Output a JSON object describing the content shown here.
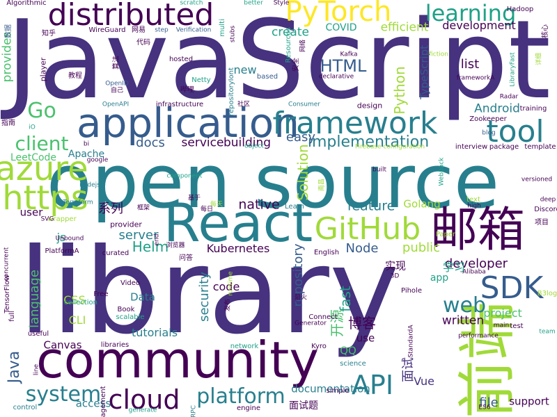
{
  "colors": {
    "background": "#ffffff",
    "palette": [
      "#440154",
      "#46327e",
      "#365c8d",
      "#277f8e",
      "#1fa187",
      "#4ac16d",
      "#a0da39",
      "#fde725"
    ]
  },
  "words": [
    {
      "text": "JavaScript",
      "color": "#46327e"
    },
    {
      "text": "library",
      "color": "#46327e"
    },
    {
      "text": "open source",
      "color": "#277f8e"
    },
    {
      "text": "community",
      "color": "#440154"
    },
    {
      "text": "React",
      "color": "#277f8e"
    },
    {
      "text": "前端",
      "color": "#a0da39"
    },
    {
      "text": "邮箱",
      "color": "#440154"
    },
    {
      "text": "application",
      "color": "#365c8d"
    },
    {
      "text": "distributed",
      "color": "#440154"
    },
    {
      "text": "framework",
      "color": "#277f8e"
    },
    {
      "text": "PyTorch",
      "color": "#fde725"
    },
    {
      "text": "GitHub",
      "color": "#a0da39"
    },
    {
      "text": "azure",
      "color": "#a0da39"
    },
    {
      "text": "https",
      "color": "#a0da39"
    },
    {
      "text": "tool",
      "color": "#277f8e"
    },
    {
      "text": "cloud",
      "color": "#440154"
    },
    {
      "text": "SDK",
      "color": "#365c8d"
    },
    {
      "text": "platform",
      "color": "#277f8e"
    },
    {
      "text": "API",
      "color": "#277f8e"
    },
    {
      "text": "learning",
      "color": "#1fa187"
    },
    {
      "text": "Go",
      "color": "#4ac16d"
    },
    {
      "text": "web",
      "color": "#277f8e"
    },
    {
      "text": "system",
      "color": "#277f8e"
    },
    {
      "text": "Java",
      "color": "#365c8d"
    },
    {
      "text": "client",
      "color": "#4ac16d"
    },
    {
      "text": "implementation",
      "color": "#277f8e"
    },
    {
      "text": "development",
      "color": "#440154"
    },
    {
      "text": "create",
      "color": "#1fa187"
    },
    {
      "text": "efficient",
      "color": "#a0da39"
    },
    {
      "text": "COVID",
      "color": "#1fa187"
    },
    {
      "text": "HTML",
      "color": "#365c8d"
    },
    {
      "text": "Python",
      "color": "#a0da39"
    },
    {
      "text": "new",
      "color": "#277f8e"
    },
    {
      "text": "list",
      "color": "#440154"
    },
    {
      "text": "Android",
      "color": "#277f8e"
    },
    {
      "text": "docs",
      "color": "#365c8d"
    },
    {
      "text": "service",
      "color": "#440154"
    },
    {
      "text": "building",
      "color": "#440154"
    },
    {
      "text": "easy",
      "color": "#365c8d"
    },
    {
      "text": "Solution",
      "color": "#a0da39"
    },
    {
      "text": "native",
      "color": "#440154"
    },
    {
      "text": "feature",
      "color": "#277f8e"
    },
    {
      "text": "Golang",
      "color": "#a0da39"
    },
    {
      "text": "系列",
      "color": "#440154"
    },
    {
      "text": "Kubernetes",
      "color": "#440154"
    },
    {
      "text": "Helm",
      "color": "#1fa187"
    },
    {
      "text": "server",
      "color": "#277f8e"
    },
    {
      "text": "Node",
      "color": "#365c8d"
    },
    {
      "text": "public",
      "color": "#a0da39"
    },
    {
      "text": "developer",
      "color": "#440154"
    },
    {
      "text": "学习",
      "color": "#1fa187"
    },
    {
      "text": "实现",
      "color": "#440154"
    },
    {
      "text": "repository",
      "color": "#365c8d"
    },
    {
      "text": "fast",
      "color": "#1fa187"
    },
    {
      "text": "code",
      "color": "#440154"
    },
    {
      "text": "security",
      "color": "#277f8e"
    },
    {
      "text": "博客",
      "color": "#440154"
    },
    {
      "text": "开源",
      "color": "#4ac16d"
    },
    {
      "text": "project",
      "color": "#4ac16d"
    },
    {
      "text": "written",
      "color": "#440154"
    },
    {
      "text": "language",
      "color": "#4ac16d"
    },
    {
      "text": "CSS",
      "color": "#a0da39"
    },
    {
      "text": "CLI",
      "color": "#a0da39"
    },
    {
      "text": "Data",
      "color": "#277f8e"
    },
    {
      "text": "tutorials",
      "color": "#277f8e"
    },
    {
      "text": "Canvas",
      "color": "#440154"
    },
    {
      "text": "use",
      "color": "#440154"
    },
    {
      "text": "QQ",
      "color": "#4ac16d"
    },
    {
      "text": "面试",
      "color": "#46327e"
    },
    {
      "text": "Vue",
      "color": "#46327e"
    },
    {
      "text": "file",
      "color": "#365c8d"
    },
    {
      "text": "support",
      "color": "#440154"
    },
    {
      "text": "documentation",
      "color": "#277f8e"
    },
    {
      "text": "面试题",
      "color": "#440154"
    },
    {
      "text": "access",
      "color": "#277f8e"
    },
    {
      "text": "js",
      "color": "#1fa187"
    },
    {
      "text": "user",
      "color": "#440154"
    },
    {
      "text": "provider",
      "color": "#440154"
    },
    {
      "text": "app",
      "color": "#1fa187"
    },
    {
      "text": "LeetCode",
      "color": "#4ac16d"
    },
    {
      "text": "Apache",
      "color": "#277f8e"
    },
    {
      "text": "provides",
      "color": "#4ac16d"
    },
    {
      "text": "based",
      "color": "#365c8d"
    },
    {
      "text": "design",
      "color": "#440154"
    },
    {
      "text": "TypeScript",
      "color": "#365c8d"
    },
    {
      "text": "Hadoop",
      "color": "#440154"
    },
    {
      "text": "Algorithmic",
      "color": "#440154"
    },
    {
      "text": "数据",
      "color": "#365c8d"
    },
    {
      "text": "知乎",
      "color": "#440154"
    },
    {
      "text": "WireGuard",
      "color": "#440154"
    },
    {
      "text": "网易",
      "color": "#440154"
    },
    {
      "text": "step",
      "color": "#365c8d"
    },
    {
      "text": "Verification",
      "color": "#365c8d"
    },
    {
      "text": "better",
      "color": "#1fa187"
    },
    {
      "text": "Style",
      "color": "#440154"
    },
    {
      "text": "scratch",
      "color": "#1fa187"
    },
    {
      "text": "核心",
      "color": "#440154"
    },
    {
      "text": "教程",
      "color": "#440154"
    },
    {
      "text": "代码",
      "color": "#440154"
    },
    {
      "text": "算法",
      "color": "#440154"
    },
    {
      "text": "hosted",
      "color": "#440154"
    },
    {
      "text": "Netty",
      "color": "#1fa187"
    },
    {
      "text": "哔哩",
      "color": "#440154"
    },
    {
      "text": "OpenAPI",
      "color": "#277f8e"
    },
    {
      "text": "infrastructure",
      "color": "#440154"
    },
    {
      "text": "社区",
      "color": "#440154"
    },
    {
      "text": "Consumer",
      "color": "#277f8e"
    },
    {
      "text": "Radar",
      "color": "#440154"
    },
    {
      "text": "training",
      "color": "#440154"
    },
    {
      "text": "Zookeeper",
      "color": "#440154"
    },
    {
      "text": "blog",
      "color": "#365c8d"
    },
    {
      "text": "interview",
      "color": "#440154"
    },
    {
      "text": "package",
      "color": "#440154"
    },
    {
      "text": "template",
      "color": "#440154"
    },
    {
      "text": "Firebase configuration",
      "color": "#a0da39"
    },
    {
      "text": "google",
      "color": "#440154"
    },
    {
      "text": "nodejs",
      "color": "#277f8e"
    },
    {
      "text": "Terraform",
      "color": "#277f8e"
    },
    {
      "text": "wrapper",
      "color": "#a0da39"
    },
    {
      "text": "SVG",
      "color": "#440154"
    },
    {
      "text": "Unbound",
      "color": "#440154"
    },
    {
      "text": "PlatformA",
      "color": "#440154"
    },
    {
      "text": "浏览器",
      "color": "#440154"
    },
    {
      "text": "问答",
      "color": "#440154"
    },
    {
      "text": "curated",
      "color": "#440154"
    },
    {
      "text": "English",
      "color": "#440154"
    },
    {
      "text": "Video",
      "color": "#440154"
    },
    {
      "text": "Free",
      "color": "#440154"
    },
    {
      "text": "collection",
      "color": "#1fa187"
    },
    {
      "text": "Book",
      "color": "#440154"
    },
    {
      "text": "scalable",
      "color": "#1fa187"
    },
    {
      "text": "runtime",
      "color": "#a0da39"
    },
    {
      "text": "Pihole",
      "color": "#440154"
    },
    {
      "text": "Generator",
      "color": "#440154"
    },
    {
      "text": "Connect",
      "color": "#440154"
    },
    {
      "text": "main",
      "color": "#440154"
    },
    {
      "text": "test",
      "color": "#440154"
    },
    {
      "text": "team",
      "color": "#1fa187"
    },
    {
      "text": "performance",
      "color": "#440154"
    },
    {
      "text": "libraries",
      "color": "#440154"
    },
    {
      "text": "network",
      "color": "#1fa187"
    },
    {
      "text": "Kyro",
      "color": "#440154"
    },
    {
      "text": "simple",
      "color": "#440154"
    },
    {
      "text": "science",
      "color": "#277f8e"
    },
    {
      "text": "control",
      "color": "#277f8e"
    },
    {
      "text": "line",
      "color": "#440154"
    },
    {
      "text": "useful",
      "color": "#440154"
    },
    {
      "text": "TensorFlow",
      "color": "#440154"
    },
    {
      "text": "full",
      "color": "#440154"
    },
    {
      "text": "concurrent",
      "color": "#440154"
    },
    {
      "text": "management",
      "color": "#440154"
    },
    {
      "text": "generate",
      "color": "#1fa187"
    },
    {
      "text": "engine",
      "color": "#440154"
    },
    {
      "text": "ES6",
      "color": "#440154"
    },
    {
      "text": "RPC",
      "color": "#277f8e"
    },
    {
      "text": "StandardA",
      "color": "#440154"
    },
    {
      "text": "3D",
      "color": "#440154"
    },
    {
      "text": "发布",
      "color": "#440154"
    },
    {
      "text": "built",
      "color": "#440154"
    },
    {
      "text": "versioned",
      "color": "#440154"
    },
    {
      "text": "text",
      "color": "#a0da39"
    },
    {
      "text": "high",
      "color": "#440154"
    },
    {
      "text": "deep",
      "color": "#440154"
    },
    {
      "text": "Discord",
      "color": "#440154"
    },
    {
      "text": "项目",
      "color": "#440154"
    },
    {
      "text": "Alibaba",
      "color": "#440154"
    },
    {
      "text": "B3log",
      "color": "#a0da39"
    },
    {
      "text": "Paper",
      "color": "#a0da39"
    },
    {
      "text": "end",
      "color": "#440154"
    },
    {
      "text": "每天",
      "color": "#a0da39"
    },
    {
      "text": "每日",
      "color": "#440154"
    },
    {
      "text": "框架",
      "color": "#440154"
    },
    {
      "text": "基于",
      "color": "#440154"
    },
    {
      "text": "Learn",
      "color": "#277f8e"
    },
    {
      "text": "Webpack",
      "color": "#1fa187"
    },
    {
      "text": "frameworkA",
      "color": "#440154"
    },
    {
      "text": "declarative",
      "color": "#440154"
    },
    {
      "text": "Kafka",
      "color": "#440154"
    },
    {
      "text": "安全",
      "color": "#440154"
    },
    {
      "text": "网络",
      "color": "#440154"
    },
    {
      "text": "Resources",
      "color": "#1fa187"
    },
    {
      "text": "repositoryIont",
      "color": "#277f8e"
    },
    {
      "text": "multi",
      "color": "#1fa187"
    },
    {
      "text": "stubs",
      "color": "#440154"
    },
    {
      "text": "OpenID",
      "color": "#365c8d"
    },
    {
      "text": "自己",
      "color": "#440154"
    },
    {
      "text": "player",
      "color": "#440154"
    },
    {
      "text": "指南",
      "color": "#440154"
    },
    {
      "text": "iO",
      "color": "#1fa187"
    },
    {
      "text": "bi",
      "color": "#440154"
    },
    {
      "text": "object",
      "color": "#1fa187"
    },
    {
      "text": "component",
      "color": "#1fa187"
    },
    {
      "text": "LibraryFast",
      "color": "#1fa187"
    },
    {
      "text": "详细",
      "color": "#a0da39"
    },
    {
      "text": "南昌",
      "color": "#a0da39"
    },
    {
      "text": "最火",
      "color": "#440154"
    },
    {
      "text": "fiction",
      "color": "#a0da39"
    }
  ]
}
